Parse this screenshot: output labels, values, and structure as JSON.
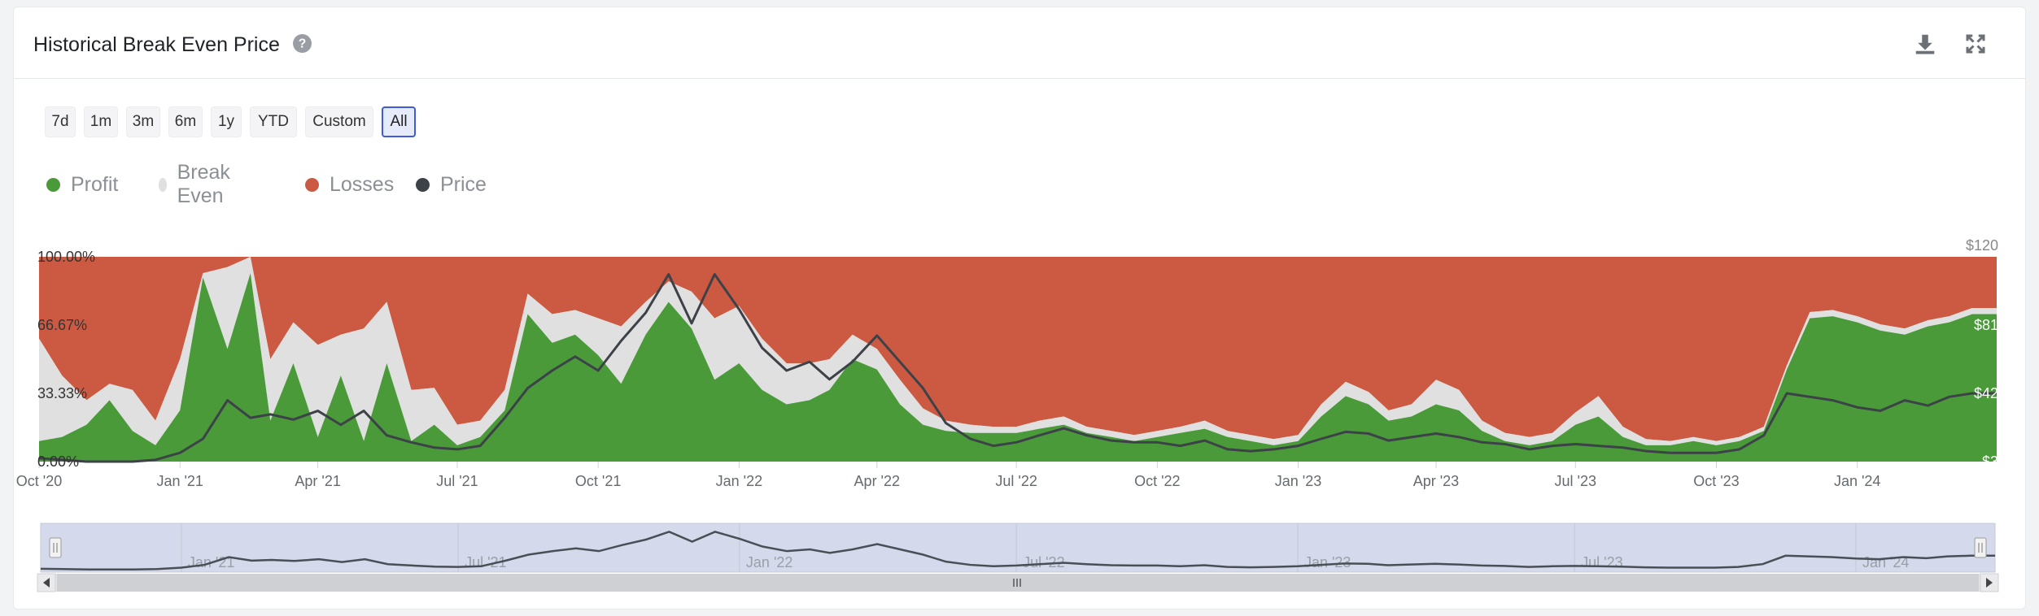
{
  "header": {
    "title": "Historical Break Even Price"
  },
  "range_buttons": [
    {
      "label": "7d"
    },
    {
      "label": "1m"
    },
    {
      "label": "3m"
    },
    {
      "label": "6m"
    },
    {
      "label": "1y"
    },
    {
      "label": "YTD"
    },
    {
      "label": "Custom"
    },
    {
      "label": "All",
      "active": true
    }
  ],
  "legend": [
    {
      "label": "Profit",
      "color": "#4a9a3a"
    },
    {
      "label": "Break Even",
      "color": "#e0e0e0"
    },
    {
      "label": "Losses",
      "color": "#cc5a42"
    },
    {
      "label": "Price",
      "color": "#3d4148"
    }
  ],
  "icons": {
    "help": "question-circle-icon",
    "download": "download-icon",
    "fullscreen": "expand-icon"
  },
  "chart_data": {
    "type": "area",
    "stacked_percent": true,
    "x_ticks": [
      "Oct '20",
      "Jan '21",
      "Apr '21",
      "Jul '21",
      "Oct '21",
      "Jan '22",
      "Apr '22",
      "Jul '22",
      "Oct '22",
      "Jan '23",
      "Apr '23",
      "Jul '23",
      "Oct '23",
      "Jan '24"
    ],
    "y_ticks_left": [
      "0.00%",
      "33.33%",
      "66.67%",
      "100.00%"
    ],
    "y_ticks_right": [
      "$3",
      "$42",
      "$81",
      "$120"
    ],
    "ylim_left": [
      0,
      100
    ],
    "ylim_right": [
      3,
      120
    ],
    "grid": false,
    "legend_position": "top-left",
    "x": [
      "2020-10-01",
      "2020-10-16",
      "2020-11-01",
      "2020-11-16",
      "2020-12-01",
      "2020-12-16",
      "2021-01-01",
      "2021-01-16",
      "2021-02-01",
      "2021-02-16",
      "2021-03-01",
      "2021-03-16",
      "2021-04-01",
      "2021-04-16",
      "2021-05-01",
      "2021-05-16",
      "2021-06-01",
      "2021-06-16",
      "2021-07-01",
      "2021-07-16",
      "2021-08-01",
      "2021-08-16",
      "2021-09-01",
      "2021-09-16",
      "2021-10-01",
      "2021-10-16",
      "2021-11-01",
      "2021-11-16",
      "2021-12-01",
      "2021-12-16",
      "2022-01-01",
      "2022-01-16",
      "2022-02-01",
      "2022-02-16",
      "2022-03-01",
      "2022-03-16",
      "2022-04-01",
      "2022-04-16",
      "2022-05-01",
      "2022-05-16",
      "2022-06-01",
      "2022-06-16",
      "2022-07-01",
      "2022-07-16",
      "2022-08-01",
      "2022-08-16",
      "2022-09-01",
      "2022-09-16",
      "2022-10-01",
      "2022-10-16",
      "2022-11-01",
      "2022-11-16",
      "2022-12-01",
      "2022-12-16",
      "2023-01-01",
      "2023-01-16",
      "2023-02-01",
      "2023-02-16",
      "2023-03-01",
      "2023-03-16",
      "2023-04-01",
      "2023-04-16",
      "2023-05-01",
      "2023-05-16",
      "2023-06-01",
      "2023-06-16",
      "2023-07-01",
      "2023-07-16",
      "2023-08-01",
      "2023-08-16",
      "2023-09-01",
      "2023-09-16",
      "2023-10-01",
      "2023-10-16",
      "2023-11-01",
      "2023-11-16",
      "2023-12-01",
      "2023-12-16",
      "2024-01-01",
      "2024-01-16",
      "2024-02-01",
      "2024-02-16",
      "2024-03-01",
      "2024-03-16"
    ],
    "series": [
      {
        "name": "Profit",
        "values": [
          10,
          12,
          18,
          30,
          15,
          8,
          25,
          90,
          55,
          92,
          20,
          48,
          12,
          42,
          10,
          48,
          10,
          18,
          8,
          12,
          25,
          72,
          58,
          62,
          52,
          38,
          62,
          78,
          65,
          40,
          48,
          35,
          28,
          30,
          35,
          50,
          45,
          28,
          18,
          15,
          14,
          14,
          14,
          16,
          18,
          14,
          12,
          10,
          12,
          14,
          16,
          12,
          10,
          8,
          10,
          22,
          32,
          28,
          20,
          22,
          28,
          25,
          15,
          10,
          8,
          10,
          18,
          22,
          12,
          8,
          8,
          10,
          8,
          10,
          15,
          45,
          70,
          71,
          68,
          64,
          62,
          66,
          68,
          72
        ]
      },
      {
        "name": "Break Even",
        "values": [
          50,
          30,
          12,
          8,
          20,
          12,
          25,
          2,
          40,
          8,
          30,
          20,
          45,
          20,
          55,
          30,
          25,
          18,
          10,
          8,
          10,
          10,
          14,
          12,
          18,
          28,
          16,
          10,
          18,
          30,
          28,
          25,
          20,
          18,
          15,
          12,
          10,
          12,
          8,
          5,
          4,
          3,
          3,
          4,
          4,
          3,
          3,
          3,
          3,
          3,
          4,
          3,
          3,
          3,
          3,
          6,
          7,
          6,
          5,
          6,
          12,
          10,
          5,
          4,
          4,
          4,
          6,
          10,
          5,
          3,
          2,
          2,
          2,
          2,
          2,
          2,
          3,
          3,
          3,
          3,
          3,
          3,
          3,
          3
        ]
      },
      {
        "name": "Losses",
        "values": [
          40,
          58,
          70,
          62,
          65,
          80,
          50,
          8,
          5,
          0,
          50,
          32,
          43,
          38,
          35,
          22,
          65,
          64,
          82,
          80,
          65,
          18,
          28,
          26,
          30,
          34,
          22,
          12,
          17,
          30,
          24,
          40,
          52,
          52,
          50,
          38,
          45,
          60,
          74,
          80,
          82,
          83,
          83,
          80,
          78,
          83,
          85,
          87,
          85,
          83,
          80,
          85,
          87,
          89,
          87,
          72,
          61,
          66,
          75,
          72,
          60,
          65,
          80,
          86,
          88,
          86,
          76,
          68,
          83,
          89,
          90,
          88,
          90,
          88,
          83,
          53,
          27,
          26,
          29,
          33,
          35,
          31,
          29,
          25
        ]
      },
      {
        "name": "Price",
        "values": [
          5,
          4,
          3,
          3,
          3,
          4,
          8,
          16,
          38,
          28,
          30,
          27,
          32,
          24,
          32,
          18,
          14,
          11,
          10,
          12,
          28,
          45,
          55,
          63,
          55,
          72,
          88,
          110,
          82,
          110,
          90,
          68,
          55,
          60,
          50,
          60,
          75,
          60,
          45,
          25,
          16,
          12,
          14,
          18,
          22,
          18,
          15,
          14,
          14,
          12,
          15,
          10,
          9,
          10,
          12,
          16,
          20,
          19,
          15,
          17,
          19,
          17,
          14,
          13,
          10,
          12,
          13,
          12,
          11,
          9,
          8,
          8,
          8,
          10,
          18,
          42,
          40,
          38,
          34,
          32,
          38,
          35,
          40,
          42
        ]
      }
    ]
  },
  "navigator": {
    "labels": [
      "Jan '21",
      "Jul '21",
      "Jan '22",
      "Jul '22",
      "Jan '23",
      "Jul '23",
      "Jan '24"
    ]
  }
}
